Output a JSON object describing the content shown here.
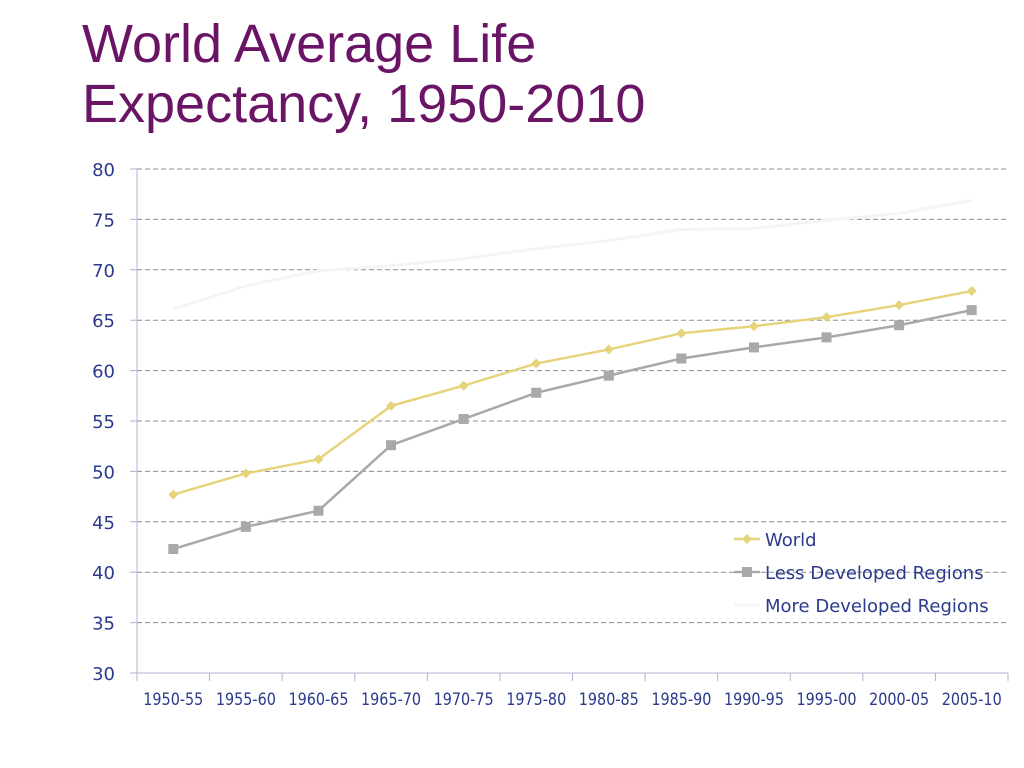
{
  "slide": {
    "title_line1": "World Average Life",
    "title_line2": "Expectancy, 1950-2010"
  },
  "chart_data": {
    "type": "line",
    "title": "World Average Life Expectancy, 1950-2010",
    "xlabel": "",
    "ylabel": "",
    "ylim": [
      30,
      80
    ],
    "yticks": [
      30,
      35,
      40,
      45,
      50,
      55,
      60,
      65,
      70,
      75,
      80
    ],
    "grid": true,
    "legend_position": "bottom-right",
    "categories": [
      "1950-55",
      "1955-60",
      "1960-65",
      "1965-70",
      "1970-75",
      "1975-80",
      "1980-85",
      "1985-90",
      "1990-95",
      "1995-00",
      "2000-05",
      "2005-10"
    ],
    "series": [
      {
        "name": "World",
        "color": "#e6d47c",
        "marker": "diamond",
        "values": [
          47.7,
          49.8,
          51.2,
          56.5,
          58.5,
          60.7,
          62.1,
          63.7,
          64.4,
          65.3,
          66.5,
          67.9
        ]
      },
      {
        "name": "Less Developed Regions",
        "color": "#a9a9a9",
        "marker": "square",
        "values": [
          42.3,
          44.5,
          46.1,
          52.6,
          55.2,
          57.8,
          59.5,
          61.2,
          62.3,
          63.3,
          64.5,
          66.0
        ]
      },
      {
        "name": "More Developed Regions",
        "color": "#f4f4f4",
        "marker": "none",
        "values": [
          66.1,
          68.4,
          69.9,
          70.4,
          71.1,
          72.1,
          72.9,
          74.0,
          74.1,
          74.9,
          75.6,
          76.9
        ]
      }
    ]
  }
}
